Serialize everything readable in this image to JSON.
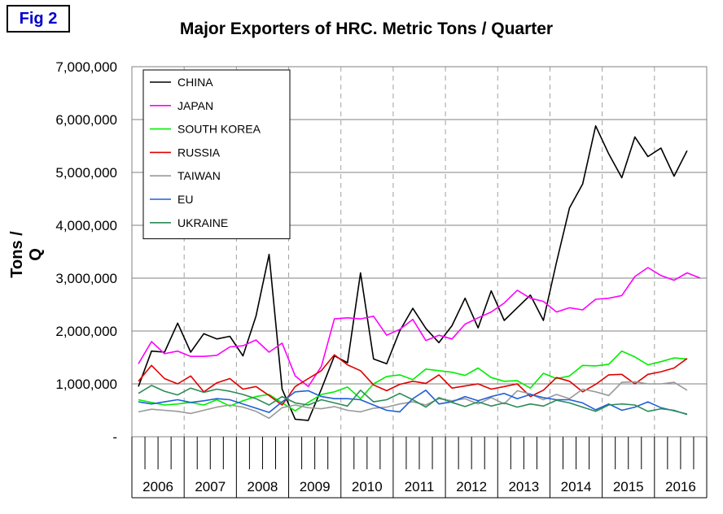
{
  "figure": {
    "label": "Fig 2",
    "label_color": "#0000cc"
  },
  "chart_data": {
    "type": "line",
    "title": "Major Exporters of HRC. Metric Tons / Quarter",
    "ylabel": "Tons / Q",
    "xlabel": "",
    "ylim": [
      0,
      7000000
    ],
    "yticks": [
      {
        "value": 0,
        "label": "-"
      },
      {
        "value": 1000000,
        "label": "1,000,000"
      },
      {
        "value": 2000000,
        "label": "2,000,000"
      },
      {
        "value": 3000000,
        "label": "3,000,000"
      },
      {
        "value": 4000000,
        "label": "4,000,000"
      },
      {
        "value": 5000000,
        "label": "5,000,000"
      },
      {
        "value": 6000000,
        "label": "6,000,000"
      },
      {
        "value": 7000000,
        "label": "7,000,000"
      }
    ],
    "years": [
      "2006",
      "2007",
      "2008",
      "2009",
      "2010",
      "2011",
      "2012",
      "2013",
      "2014",
      "2015",
      "2016"
    ],
    "quarters_per_year": 4,
    "grid": "horizontal solid, vertical dashed at year boundaries",
    "legend_position": "top-left",
    "series": [
      {
        "name": "CHINA",
        "color": "#000000",
        "values": [
          950000,
          1620000,
          1600000,
          2150000,
          1600000,
          1950000,
          1850000,
          1900000,
          1530000,
          2280000,
          3450000,
          900000,
          330000,
          310000,
          900000,
          1530000,
          1400000,
          3100000,
          1470000,
          1380000,
          2000000,
          2430000,
          2050000,
          1780000,
          2100000,
          2620000,
          2060000,
          2760000,
          2200000,
          2440000,
          2680000,
          2200000,
          3300000,
          4330000,
          4780000,
          5880000,
          5350000,
          4900000,
          5670000,
          5300000,
          5460000,
          4930000,
          5410000
        ]
      },
      {
        "name": "JAPAN",
        "color": "#ff00ff",
        "values": [
          1380000,
          1800000,
          1570000,
          1620000,
          1520000,
          1520000,
          1540000,
          1700000,
          1720000,
          1830000,
          1600000,
          1770000,
          1150000,
          950000,
          1330000,
          2230000,
          2250000,
          2230000,
          2280000,
          1920000,
          2030000,
          2220000,
          1820000,
          1920000,
          1850000,
          2130000,
          2250000,
          2360000,
          2530000,
          2770000,
          2620000,
          2560000,
          2360000,
          2440000,
          2400000,
          2600000,
          2620000,
          2670000,
          3030000,
          3200000,
          3050000,
          2960000,
          3100000,
          3000000
        ]
      },
      {
        "name": "SOUTH KOREA",
        "color": "#00ee00",
        "values": [
          700000,
          650000,
          600000,
          620000,
          650000,
          600000,
          700000,
          580000,
          680000,
          760000,
          800000,
          640000,
          490000,
          650000,
          800000,
          850000,
          940000,
          720000,
          1000000,
          1140000,
          1170000,
          1080000,
          1280000,
          1250000,
          1220000,
          1160000,
          1300000,
          1120000,
          1050000,
          1060000,
          920000,
          1200000,
          1100000,
          1150000,
          1350000,
          1340000,
          1370000,
          1620000,
          1510000,
          1360000,
          1420000,
          1490000,
          1470000
        ]
      },
      {
        "name": "RUSSIA",
        "color": "#e00000",
        "values": [
          1050000,
          1350000,
          1100000,
          1000000,
          1150000,
          850000,
          1020000,
          1100000,
          900000,
          950000,
          780000,
          600000,
          950000,
          1100000,
          1250000,
          1550000,
          1360000,
          1250000,
          980000,
          870000,
          990000,
          1050000,
          1010000,
          1170000,
          920000,
          960000,
          1000000,
          900000,
          950000,
          1000000,
          760000,
          880000,
          1120000,
          1050000,
          850000,
          990000,
          1170000,
          1180000,
          1000000,
          1180000,
          1230000,
          1300000,
          1480000
        ]
      },
      {
        "name": "TAIWAN",
        "color": "#999999",
        "values": [
          470000,
          520000,
          500000,
          480000,
          440000,
          500000,
          560000,
          600000,
          560000,
          480000,
          350000,
          550000,
          600000,
          550000,
          530000,
          570000,
          500000,
          470000,
          540000,
          560000,
          620000,
          660000,
          600000,
          720000,
          680000,
          720000,
          620000,
          740000,
          620000,
          870000,
          810000,
          700000,
          800000,
          720000,
          900000,
          850000,
          780000,
          1030000,
          1040000,
          1000000,
          1000000,
          1030000,
          880000
        ]
      },
      {
        "name": "EU",
        "color": "#1f5fd8",
        "values": [
          660000,
          620000,
          660000,
          700000,
          650000,
          680000,
          720000,
          700000,
          620000,
          540000,
          460000,
          660000,
          850000,
          870000,
          760000,
          720000,
          720000,
          700000,
          600000,
          500000,
          470000,
          720000,
          880000,
          620000,
          660000,
          760000,
          680000,
          760000,
          820000,
          720000,
          800000,
          740000,
          700000,
          700000,
          640000,
          510000,
          620000,
          500000,
          560000,
          660000,
          550000,
          490000,
          430000
        ]
      },
      {
        "name": "UKRAINE",
        "color": "#2e8b57",
        "values": [
          820000,
          970000,
          860000,
          790000,
          920000,
          840000,
          900000,
          860000,
          800000,
          720000,
          600000,
          760000,
          640000,
          600000,
          700000,
          640000,
          580000,
          880000,
          660000,
          700000,
          820000,
          700000,
          560000,
          740000,
          650000,
          570000,
          660000,
          580000,
          640000,
          560000,
          620000,
          580000,
          690000,
          640000,
          560000,
          480000,
          600000,
          620000,
          600000,
          480000,
          530000,
          500000,
          420000
        ]
      }
    ]
  }
}
